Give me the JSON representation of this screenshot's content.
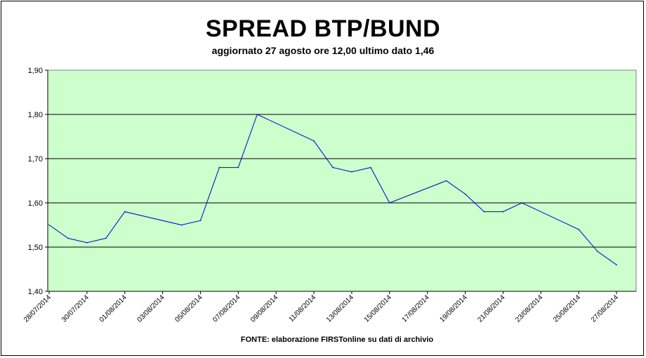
{
  "chart_data": {
    "type": "line",
    "title": "SPREAD BTP/BUND",
    "subtitle": "aggiornato 27 agosto ore 12,00 ultimo dato 1,46",
    "source": "FONTE: elaborazione FIRSTonline su dati di archivio",
    "xlabel": "",
    "ylabel": "",
    "ylim": [
      1.4,
      1.9
    ],
    "yticks": [
      "1,40",
      "1,50",
      "1,60",
      "1,70",
      "1,80",
      "1,90"
    ],
    "grid": true,
    "x_range": [
      "28/07/2014",
      "27/08/2014"
    ],
    "xticks": [
      "28/07/2014",
      "30/07/2014",
      "01/08/2014",
      "03/08/2014",
      "05/08/2014",
      "07/08/2014",
      "09/08/2014",
      "11/08/2014",
      "13/08/2014",
      "15/08/2014",
      "17/08/2014",
      "19/08/2014",
      "21/08/2014",
      "23/08/2014",
      "25/08/2014",
      "27/08/2014"
    ],
    "series": [
      {
        "x": [
          "28/07/2014",
          "29/07/2014",
          "30/07/2014",
          "31/07/2014",
          "01/08/2014",
          "04/08/2014",
          "05/08/2014",
          "06/08/2014",
          "07/08/2014",
          "08/08/2014",
          "11/08/2014",
          "12/08/2014",
          "13/08/2014",
          "14/08/2014",
          "15/08/2014",
          "18/08/2014",
          "19/08/2014",
          "20/08/2014",
          "21/08/2014",
          "22/08/2014",
          "25/08/2014",
          "26/08/2014",
          "27/08/2014"
        ],
        "values": [
          1.55,
          1.52,
          1.51,
          1.52,
          1.58,
          1.55,
          1.56,
          1.68,
          1.68,
          1.8,
          1.74,
          1.68,
          1.67,
          1.68,
          1.6,
          1.65,
          1.62,
          1.58,
          1.58,
          1.6,
          1.54,
          1.49,
          1.46
        ]
      }
    ],
    "colors": {
      "plot_bg": "#ccffcc",
      "line": "#0000cc",
      "grid": "#000000"
    }
  }
}
